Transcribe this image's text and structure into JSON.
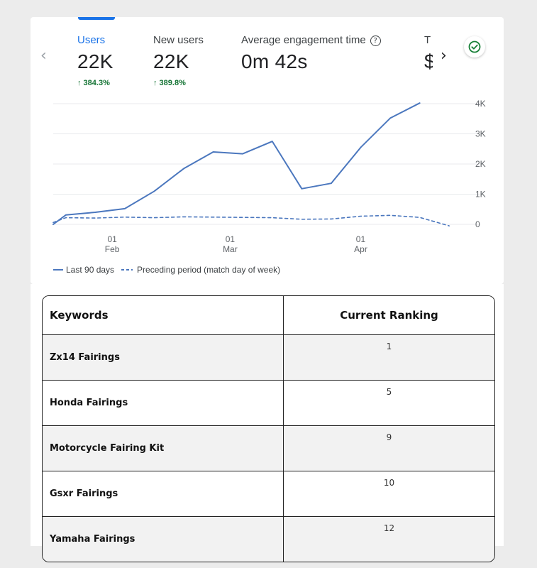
{
  "analytics": {
    "metrics": [
      {
        "label": "Users",
        "value": "22K",
        "change": "↑ 384.3%",
        "active": true
      },
      {
        "label": "New users",
        "value": "22K",
        "change": "↑ 389.8%",
        "active": false
      },
      {
        "label": "Average engagement time",
        "value": "0m 42s",
        "change": "",
        "active": false
      },
      {
        "label": "T",
        "value": "$",
        "change": "",
        "active": false
      }
    ],
    "icons": {
      "prev": "chevron-left-icon",
      "next": "chevron-right-icon",
      "check": "check-circle-icon",
      "help": "help-icon"
    },
    "help_glyph": "?",
    "prev_glyph": "‹",
    "next_glyph": "›",
    "legend": {
      "current": "Last 90 days",
      "previous": "Preceding period (match day of week)"
    },
    "colors": {
      "active_tab": "#1a73e8",
      "series": "#4b77be",
      "positive_change": "#137333",
      "check": "#188038"
    }
  },
  "chart_data": {
    "type": "line",
    "ylim": [
      0,
      4000
    ],
    "y_ticks": [
      0,
      1000,
      2000,
      3000,
      4000
    ],
    "y_tick_labels": [
      "0",
      "1K",
      "2K",
      "3K",
      "4K"
    ],
    "x_range": [
      "Jan 18",
      "Apr 25"
    ],
    "x_ticks": [
      {
        "date": "Feb 01",
        "label": [
          "01",
          "Feb"
        ]
      },
      {
        "date": "Mar 01",
        "label": [
          "01",
          "Mar"
        ]
      },
      {
        "date": "Apr 01",
        "label": [
          "01",
          "Apr"
        ]
      }
    ],
    "series": [
      {
        "name": "Last 90 days",
        "style": "solid",
        "x": [
          "Jan 18",
          "Jan 21",
          "Jan 28",
          "Feb 04",
          "Feb 11",
          "Feb 18",
          "Feb 25",
          "Mar 04",
          "Mar 11",
          "Mar 18",
          "Mar 25",
          "Apr 01",
          "Apr 08",
          "Apr 15"
        ],
        "values": [
          0,
          310,
          400,
          520,
          1100,
          1850,
          2400,
          2340,
          2750,
          1180,
          1360,
          2550,
          3520,
          4020
        ]
      },
      {
        "name": "Preceding period (match day of week)",
        "style": "dashed",
        "x": [
          "Jan 18",
          "Jan 21",
          "Jan 28",
          "Feb 04",
          "Feb 11",
          "Feb 18",
          "Feb 25",
          "Mar 04",
          "Mar 11",
          "Mar 18",
          "Mar 25",
          "Apr 01",
          "Apr 08",
          "Apr 15",
          "Apr 22"
        ],
        "values": [
          60,
          220,
          210,
          240,
          220,
          250,
          240,
          230,
          220,
          170,
          180,
          270,
          300,
          230,
          -50
        ]
      }
    ]
  },
  "keywords_table": {
    "headers": {
      "keyword": "Keywords",
      "ranking": "Current Ranking"
    },
    "rows": [
      {
        "keyword": "Zx14 Fairings",
        "ranking": "1"
      },
      {
        "keyword": "Honda Fairings",
        "ranking": "5"
      },
      {
        "keyword": "Motorcycle Fairing Kit",
        "ranking": "9"
      },
      {
        "keyword": "Gsxr Fairings",
        "ranking": "10"
      },
      {
        "keyword": "Yamaha Fairings",
        "ranking": "12"
      }
    ]
  }
}
